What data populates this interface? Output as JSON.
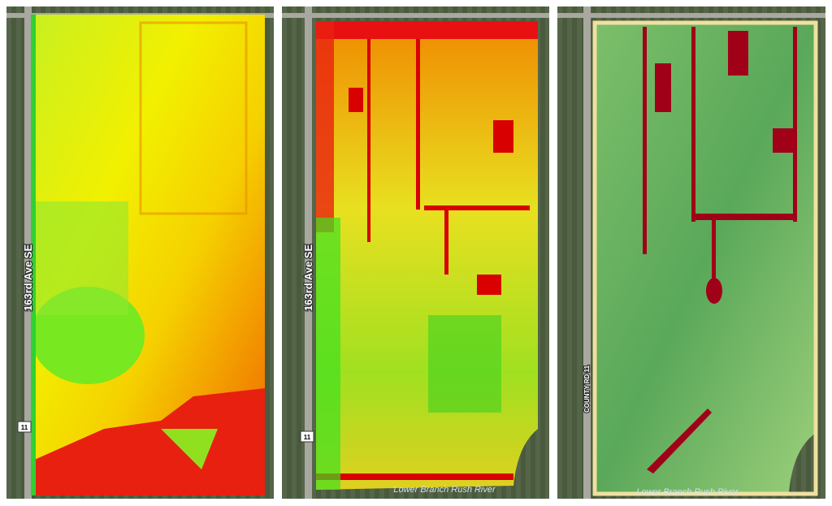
{
  "panels": [
    {
      "road_label": "163rd Ave SE",
      "route_badge": "11"
    },
    {
      "road_label": "163rd Ave SE",
      "route_badge": "11",
      "river_label": "Lower Branch Rush River"
    },
    {
      "road_label": "COUNTY RD 11",
      "river_label": "Lower Branch Rush River"
    }
  ]
}
